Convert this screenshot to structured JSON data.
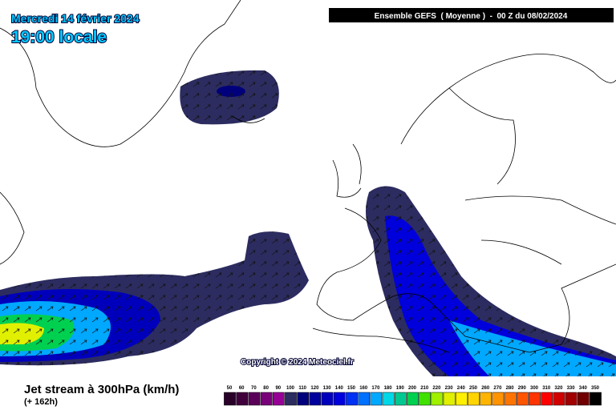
{
  "header": {
    "date": "Mercredi 14 février 2024",
    "time": "19:00 locale",
    "model": "Ensemble GEFS  ( Moyenne )  -  00 Z du 08/02/2024"
  },
  "copyright": "Copyright © 2024 Meteociel.fr",
  "legend": {
    "title": "Jet stream à 300hPa (km/h)",
    "lead": "(+ 162h)",
    "ticks": [
      50,
      60,
      70,
      80,
      90,
      100,
      110,
      120,
      130,
      140,
      150,
      160,
      170,
      180,
      190,
      200,
      210,
      220,
      230,
      240,
      250,
      260,
      270,
      280,
      290,
      300,
      310,
      320,
      330,
      340,
      350
    ],
    "colors": [
      "#280028",
      "#40003c",
      "#5a0058",
      "#780078",
      "#960096",
      "#2c2c60",
      "#00007c",
      "#00009c",
      "#0000bc",
      "#0000dc",
      "#0030f4",
      "#0070ff",
      "#00a8ff",
      "#00d8e8",
      "#00c890",
      "#00d050",
      "#40e000",
      "#a0f000",
      "#e0f000",
      "#fff000",
      "#ffd400",
      "#ffb400",
      "#ff9400",
      "#ff7400",
      "#ff5400",
      "#ff3400",
      "#ff0000",
      "#d00000",
      "#a00000",
      "#700000",
      "#000000"
    ]
  }
}
